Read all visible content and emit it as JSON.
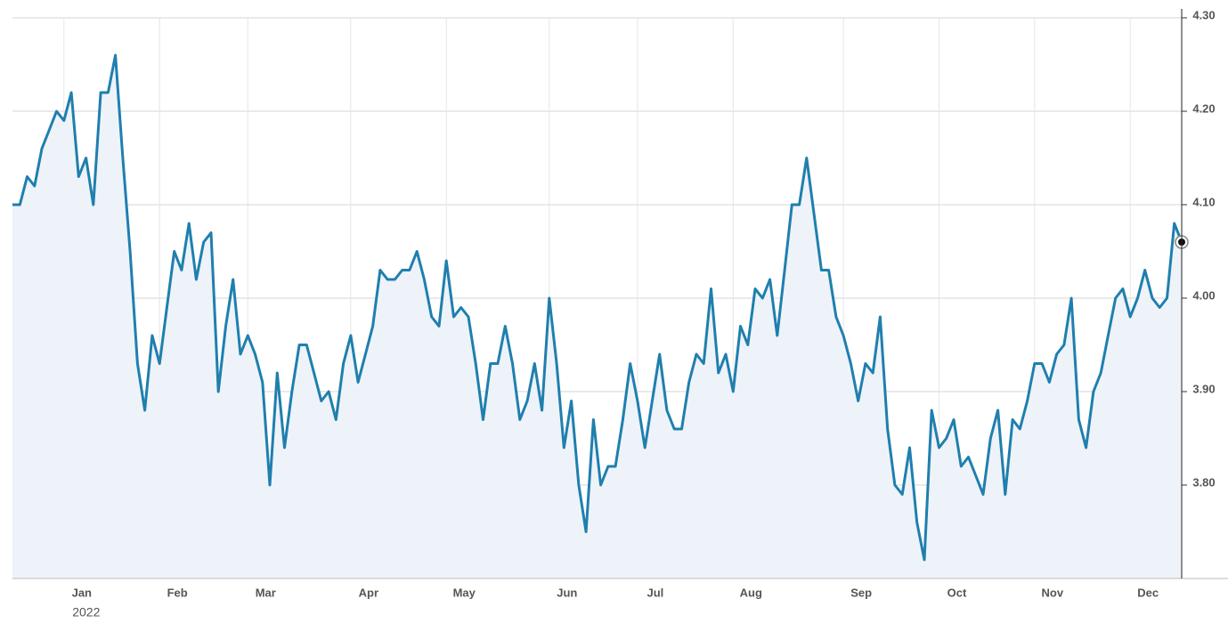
{
  "chart_data": {
    "type": "line",
    "color": "#1f7fae",
    "area_color": "#eef3f9",
    "grid": true,
    "x_sublabel": "2022",
    "categories": [
      null,
      null,
      null,
      null,
      null,
      null,
      null,
      "Jan",
      null,
      null,
      null,
      null,
      null,
      null,
      null,
      null,
      null,
      null,
      null,
      null,
      "Feb",
      null,
      null,
      null,
      null,
      null,
      null,
      null,
      null,
      null,
      null,
      null,
      "Mar",
      null,
      null,
      null,
      null,
      null,
      null,
      null,
      null,
      null,
      null,
      null,
      null,
      null,
      "Apr",
      null,
      null,
      null,
      null,
      null,
      null,
      null,
      null,
      null,
      null,
      null,
      null,
      "May",
      null,
      null,
      null,
      null,
      null,
      null,
      null,
      null,
      null,
      null,
      null,
      null,
      null,
      "Jun",
      null,
      null,
      null,
      null,
      null,
      null,
      null,
      null,
      null,
      null,
      null,
      "Jul",
      null,
      null,
      null,
      null,
      null,
      null,
      null,
      null,
      null,
      null,
      null,
      null,
      "Aug",
      null,
      null,
      null,
      null,
      null,
      null,
      null,
      null,
      null,
      null,
      null,
      null,
      null,
      null,
      "Sep",
      null,
      null,
      null,
      null,
      null,
      null,
      null,
      null,
      null,
      null,
      null,
      null,
      "Oct",
      null,
      null,
      null,
      null,
      null,
      null,
      null,
      null,
      null,
      null,
      null,
      null,
      "Nov",
      null,
      null,
      null,
      null,
      null,
      null,
      null,
      null,
      null,
      null,
      null,
      null,
      "Dec",
      null,
      null,
      null,
      null,
      null,
      null,
      null
    ],
    "values": [
      4.1,
      4.1,
      4.13,
      4.12,
      4.16,
      4.18,
      4.2,
      4.19,
      4.22,
      4.13,
      4.15,
      4.1,
      4.22,
      4.22,
      4.26,
      4.15,
      4.05,
      3.93,
      3.88,
      3.96,
      3.93,
      3.99,
      4.05,
      4.03,
      4.08,
      4.02,
      4.06,
      4.07,
      3.9,
      3.97,
      4.02,
      3.94,
      3.96,
      3.94,
      3.91,
      3.8,
      3.92,
      3.84,
      3.9,
      3.95,
      3.95,
      3.92,
      3.89,
      3.9,
      3.87,
      3.93,
      3.96,
      3.91,
      3.94,
      3.97,
      4.03,
      4.02,
      4.02,
      4.03,
      4.03,
      4.05,
      4.02,
      3.98,
      3.97,
      4.04,
      3.98,
      3.99,
      3.98,
      3.93,
      3.87,
      3.93,
      3.93,
      3.97,
      3.93,
      3.87,
      3.89,
      3.93,
      3.88,
      4.0,
      3.93,
      3.84,
      3.89,
      3.8,
      3.75,
      3.87,
      3.8,
      3.82,
      3.82,
      3.87,
      3.93,
      3.89,
      3.84,
      3.89,
      3.94,
      3.88,
      3.86,
      3.86,
      3.91,
      3.94,
      3.93,
      4.01,
      3.92,
      3.94,
      3.9,
      3.97,
      3.95,
      4.01,
      4.0,
      4.02,
      3.96,
      4.03,
      4.1,
      4.1,
      4.15,
      4.09,
      4.03,
      4.03,
      3.98,
      3.96,
      3.93,
      3.89,
      3.93,
      3.92,
      3.98,
      3.86,
      3.8,
      3.79,
      3.84,
      3.76,
      3.72,
      3.88,
      3.84,
      3.85,
      3.87,
      3.82,
      3.83,
      3.81,
      3.79,
      3.85,
      3.88,
      3.79,
      3.87,
      3.86,
      3.89,
      3.93,
      3.93,
      3.91,
      3.94,
      3.95,
      4.0,
      3.87,
      3.84,
      3.9,
      3.92,
      3.96,
      4.0,
      4.01,
      3.98,
      4.0,
      4.03,
      4.0,
      3.99,
      4.0,
      4.08,
      4.06
    ],
    "ylim": [
      3.7,
      4.3
    ],
    "yticks": [
      {
        "value": 3.8,
        "label": "3.80"
      },
      {
        "value": 3.9,
        "label": "3.90"
      },
      {
        "value": 4.0,
        "label": "4.00"
      },
      {
        "value": 4.1,
        "label": "4.10"
      },
      {
        "value": 4.2,
        "label": "4.20"
      },
      {
        "value": 4.3,
        "label": "4.30"
      }
    ]
  }
}
